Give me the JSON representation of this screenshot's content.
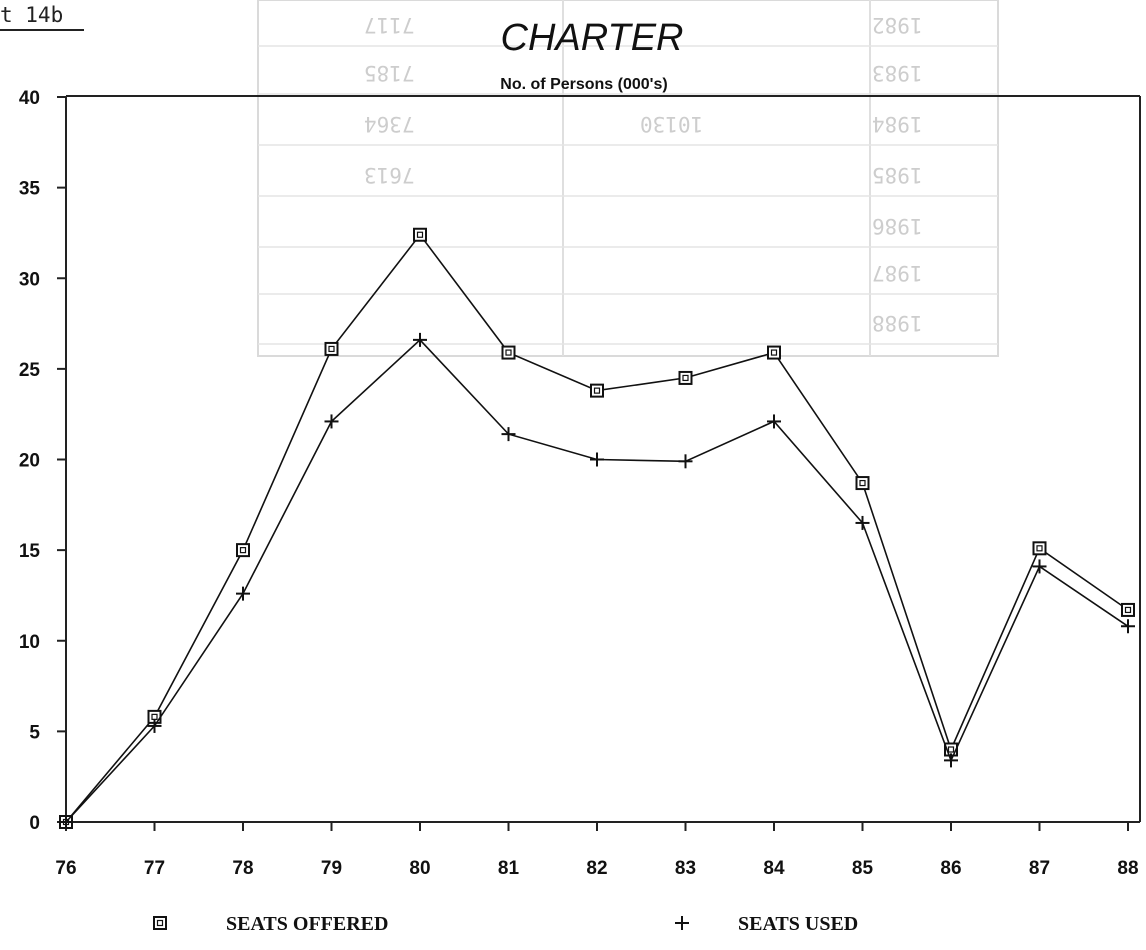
{
  "corner_label": "t 14b",
  "background_table": {
    "rows": [
      [
        "1982",
        "",
        "7117"
      ],
      [
        "1983",
        "",
        "7185"
      ],
      [
        "1984",
        "10130",
        "7364"
      ],
      [
        "1985",
        "",
        "7613"
      ],
      [
        "1986",
        "",
        ""
      ],
      [
        "1987",
        "",
        ""
      ],
      [
        "1988",
        "",
        ""
      ]
    ]
  },
  "chart_data": {
    "type": "line",
    "title": "CHARTER",
    "subtitle": "No. of Persons (000's)",
    "xlabel": "",
    "ylabel": "",
    "categories": [
      "76",
      "77",
      "78",
      "79",
      "80",
      "81",
      "82",
      "83",
      "84",
      "85",
      "86",
      "87",
      "88"
    ],
    "ylim": [
      0,
      40
    ],
    "yticks": [
      "0",
      "5",
      "10",
      "15",
      "20",
      "25",
      "30",
      "35",
      "40"
    ],
    "grid": false,
    "legend_placement": "bottom",
    "series": [
      {
        "name": "SEATS OFFERED",
        "marker": "square",
        "values": [
          0,
          5.8,
          15.0,
          26.1,
          32.4,
          25.9,
          23.8,
          24.5,
          25.9,
          18.7,
          4.0,
          15.1,
          11.7
        ]
      },
      {
        "name": "SEATS USED",
        "marker": "plus",
        "values": [
          0,
          5.3,
          12.6,
          22.1,
          26.6,
          21.4,
          20.0,
          19.9,
          22.1,
          16.5,
          3.4,
          14.1,
          10.8
        ]
      }
    ]
  }
}
